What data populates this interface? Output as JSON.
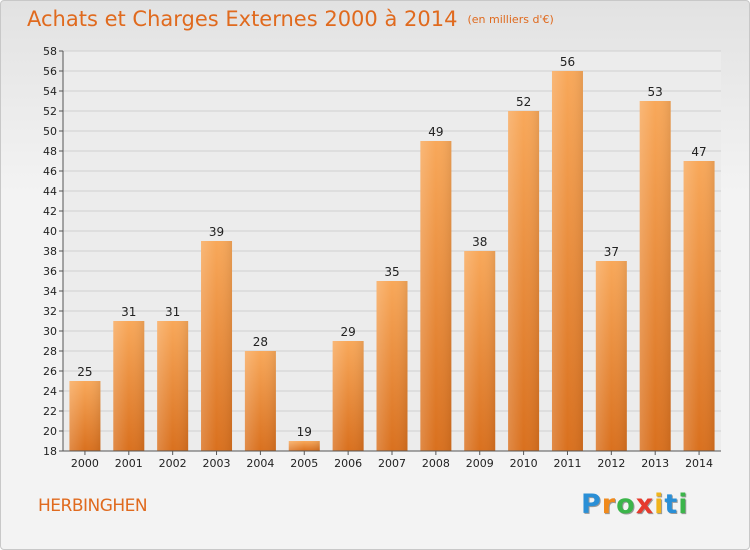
{
  "header": {
    "title": "Achats et Charges Externes 2000 à 2014",
    "unit": "(en milliers d'€)"
  },
  "footer": {
    "place": "HERBINGHEN",
    "logo_letters": [
      "P",
      "r",
      "o",
      "x",
      "i",
      "t",
      "i"
    ],
    "logo_colors": [
      "#2a8fd6",
      "#f08a1c",
      "#3bb54a",
      "#e63b2e",
      "#f0b41c",
      "#2a8fd6",
      "#3bb54a"
    ]
  },
  "chart_data": {
    "type": "bar",
    "categories": [
      "2000",
      "2001",
      "2002",
      "2003",
      "2004",
      "2005",
      "2006",
      "2007",
      "2008",
      "2009",
      "2010",
      "2011",
      "2012",
      "2013",
      "2014"
    ],
    "values": [
      25,
      31,
      31,
      39,
      28,
      19,
      29,
      35,
      49,
      38,
      52,
      56,
      37,
      53,
      47
    ],
    "title": "Achats et Charges Externes 2000 à 2014",
    "ylim": [
      18,
      58
    ],
    "ytick_step": 2,
    "grid": true,
    "bar_color_top": "#f8a85a",
    "bar_color_bottom": "#d9701e"
  }
}
